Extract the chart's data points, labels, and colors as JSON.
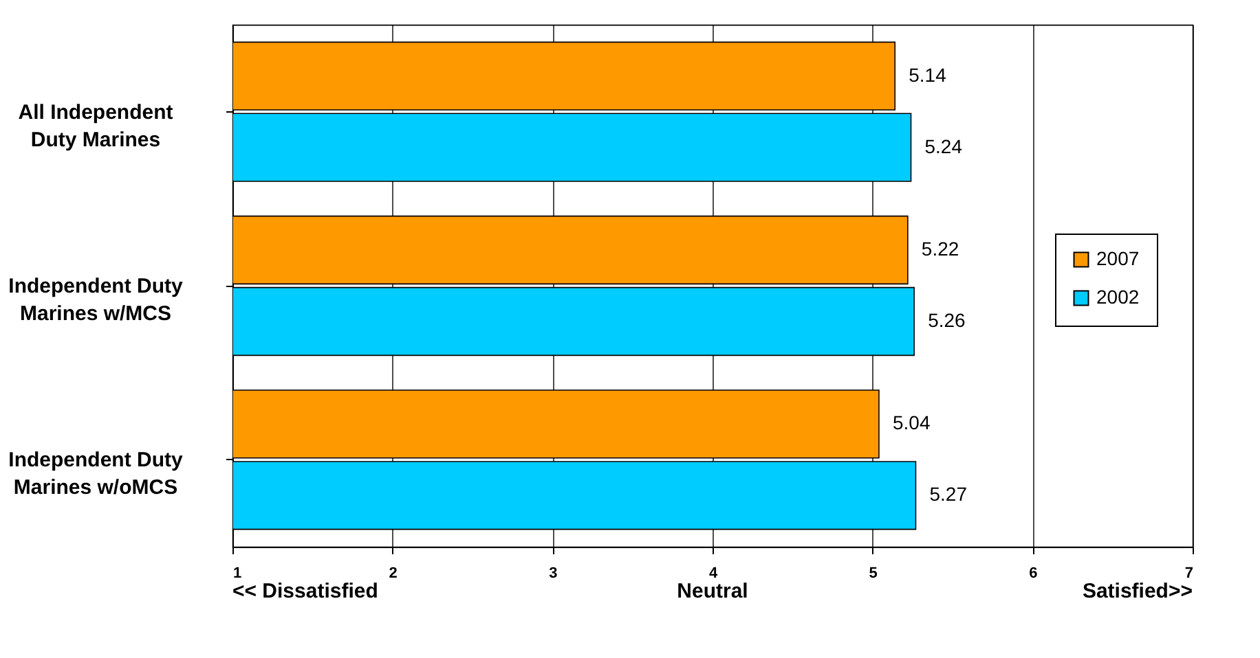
{
  "chart_data": {
    "type": "bar",
    "orientation": "horizontal",
    "categories": [
      "All Independent Duty Marines",
      "Independent Duty Marines w/MCS",
      "Independent Duty Marines w/oMCS"
    ],
    "series": [
      {
        "name": "2007",
        "color": "#ff9900",
        "values": [
          5.14,
          5.22,
          5.04
        ]
      },
      {
        "name": "2002",
        "color": "#00ccff",
        "values": [
          5.24,
          5.26,
          5.27
        ]
      }
    ],
    "xlim": [
      1,
      7
    ],
    "xticks": [
      1,
      2,
      3,
      4,
      5,
      6,
      7
    ],
    "grid": "x",
    "legend": "right",
    "data_labels": true,
    "annotations": [
      "<< Dissatisfied",
      "Neutral",
      "Satisfied>>"
    ]
  }
}
